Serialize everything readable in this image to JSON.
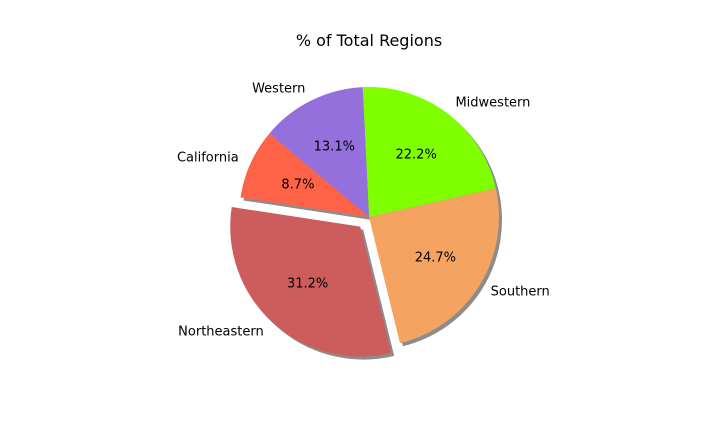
{
  "chart_data": {
    "type": "pie",
    "title": "% of Total Regions",
    "labels": [
      "California",
      "Northeastern",
      "Southern",
      "Midwestern",
      "Western"
    ],
    "values": [
      8.7,
      31.2,
      24.7,
      22.2,
      13.1
    ],
    "autopct": [
      "8.7%",
      "31.2%",
      "24.7%",
      "22.2%",
      "13.1%"
    ],
    "colors": [
      "#ff6347",
      "#cd5c5c",
      "#f4a460",
      "#7fff00",
      "#9370db"
    ],
    "explode": [
      0,
      0.1,
      0,
      0,
      0
    ],
    "start_angle_deg": 140,
    "direction": "counterclockwise",
    "shadow": true
  }
}
